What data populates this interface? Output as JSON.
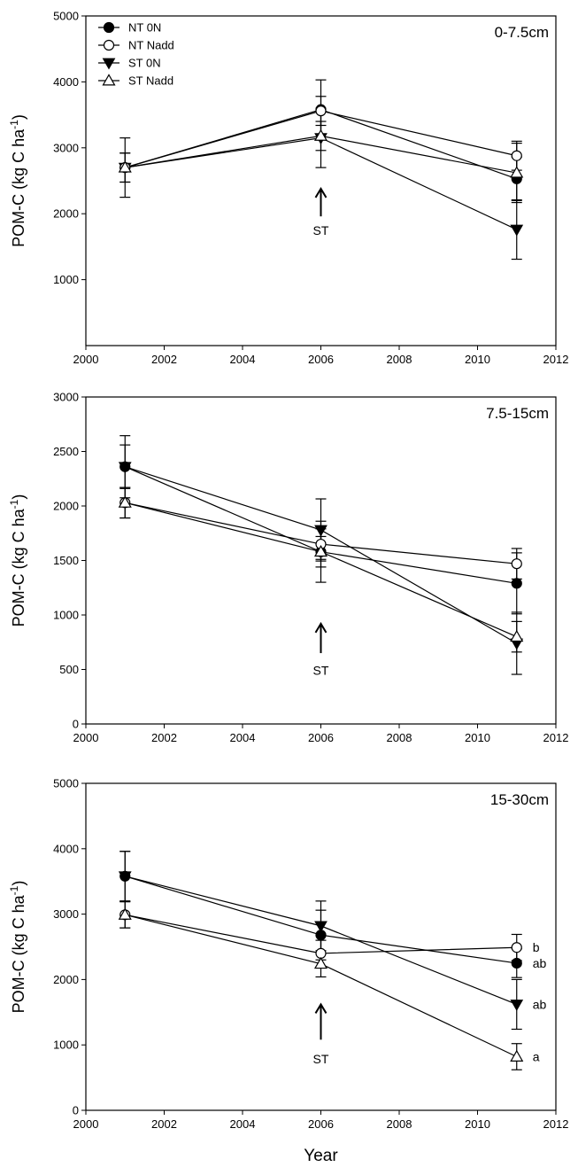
{
  "chart_data": [
    {
      "type": "line",
      "panel_label": "0-7.5cm",
      "ylabel": "POM-C (kg C ha",
      "ylabel_sup": "-1",
      "ylabel_close": ")",
      "xlabel": "",
      "xlim": [
        2000,
        2012
      ],
      "ylim": [
        0,
        5000
      ],
      "xticks": [
        2000,
        2002,
        2004,
        2006,
        2008,
        2010,
        2012
      ],
      "yticks": [
        1000,
        2000,
        3000,
        4000,
        5000
      ],
      "x": [
        2001,
        2006,
        2011
      ],
      "series": [
        {
          "name": "NT 0N",
          "marker": "circle-filled",
          "values": [
            2700,
            3580,
            2530
          ],
          "err": [
            0,
            450,
            330
          ]
        },
        {
          "name": "NT Nadd",
          "marker": "circle-open",
          "values": [
            2700,
            3560,
            2880
          ],
          "err": [
            450,
            220,
            220
          ]
        },
        {
          "name": "ST 0N",
          "marker": "triangle-down-filled",
          "values": [
            2700,
            3150,
            1760
          ],
          "err": [
            220,
            450,
            450
          ]
        },
        {
          "name": "ST Nadd",
          "marker": "triangle-up-open",
          "values": [
            2700,
            3180,
            2620
          ],
          "err": [
            220,
            220,
            450
          ]
        }
      ],
      "annotation": {
        "text": "ST",
        "x": 2006,
        "y_arrow_top": 2380,
        "y_arrow_bottom": 1960,
        "y_text": 1680
      },
      "legend": {
        "position": "top-left"
      },
      "sig_labels": []
    },
    {
      "type": "line",
      "panel_label": "7.5-15cm",
      "ylabel": "POM-C (kg C ha",
      "ylabel_sup": "-1",
      "ylabel_close": ")",
      "xlabel": "",
      "xlim": [
        2000,
        2012
      ],
      "ylim": [
        0,
        3000
      ],
      "xticks": [
        2000,
        2002,
        2004,
        2006,
        2008,
        2010,
        2012
      ],
      "yticks": [
        0,
        500,
        1000,
        1500,
        2000,
        2500,
        3000
      ],
      "x": [
        2001,
        2006,
        2011
      ],
      "series": [
        {
          "name": "NT 0N",
          "marker": "circle-filled",
          "values": [
            2360,
            1580,
            1290
          ],
          "err": [
            285,
            280,
            280
          ]
        },
        {
          "name": "NT Nadd",
          "marker": "circle-open",
          "values": [
            2030,
            1650,
            1470
          ],
          "err": [
            140,
            140,
            140
          ]
        },
        {
          "name": "ST 0N",
          "marker": "triangle-down-filled",
          "values": [
            2360,
            1780,
            740
          ],
          "err": [
            200,
            285,
            285
          ]
        },
        {
          "name": "ST Nadd",
          "marker": "triangle-up-open",
          "values": [
            2030,
            1580,
            800
          ],
          "err": [
            140,
            140,
            140
          ]
        }
      ],
      "annotation": {
        "text": "ST",
        "x": 2006,
        "y_arrow_top": 920,
        "y_arrow_bottom": 650,
        "y_text": 450
      },
      "legend": null,
      "sig_labels": []
    },
    {
      "type": "line",
      "panel_label": "15-30cm",
      "ylabel": "POM-C (kg C ha",
      "ylabel_sup": "-1",
      "ylabel_close": ")",
      "xlabel": "Year",
      "xlim": [
        2000,
        2012
      ],
      "ylim": [
        0,
        5000
      ],
      "xticks": [
        2000,
        2002,
        2004,
        2006,
        2008,
        2010,
        2012
      ],
      "yticks": [
        0,
        1000,
        2000,
        3000,
        4000,
        5000
      ],
      "x": [
        2001,
        2006,
        2011
      ],
      "series": [
        {
          "name": "NT 0N",
          "marker": "circle-filled",
          "values": [
            3580,
            2680,
            2250
          ],
          "err": [
            380,
            380,
            220
          ]
        },
        {
          "name": "NT Nadd",
          "marker": "circle-open",
          "values": [
            2990,
            2400,
            2490
          ],
          "err": [
            200,
            200,
            200
          ]
        },
        {
          "name": "ST 0N",
          "marker": "triangle-down-filled",
          "values": [
            3580,
            2820,
            1620
          ],
          "err": [
            380,
            380,
            380
          ]
        },
        {
          "name": "ST Nadd",
          "marker": "triangle-up-open",
          "values": [
            2990,
            2240,
            820
          ],
          "err": [
            200,
            200,
            200
          ]
        }
      ],
      "annotation": {
        "text": "ST",
        "x": 2006,
        "y_arrow_top": 1620,
        "y_arrow_bottom": 1080,
        "y_text": 720
      },
      "legend": null,
      "sig_labels": [
        {
          "text": "b",
          "series": 1
        },
        {
          "text": "ab",
          "series": 0
        },
        {
          "text": "ab",
          "series": 2
        },
        {
          "text": "a",
          "series": 3
        }
      ]
    }
  ]
}
